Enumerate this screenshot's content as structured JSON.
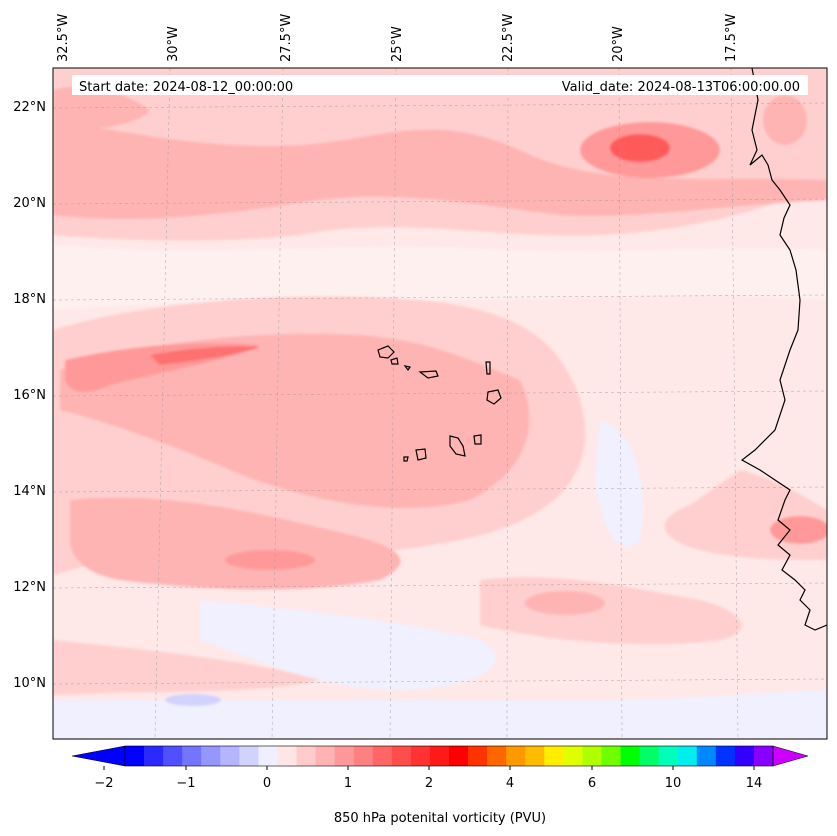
{
  "map": {
    "start_label": "Start date: 2024-08-12_00:00:00",
    "valid_label": "Valid_date: 2024-08-13T06:00:00.00",
    "lon_labels": [
      "32.5°W",
      "30°W",
      "27.5°W",
      "25°W",
      "22.5°W",
      "20°W",
      "17.5°W"
    ],
    "lat_labels": [
      "22°N",
      "20°N",
      "18°N",
      "16°N",
      "14°N",
      "12°N",
      "10°N"
    ],
    "background_color": "#ffe8e8"
  },
  "colorbar": {
    "title": "850 hPa potenital vorticity (PVU)",
    "tick_labels": [
      "−2",
      "−1",
      "0",
      "1",
      "2",
      "4",
      "6",
      "10",
      "14"
    ],
    "colors": [
      "#0000ff",
      "#2a2aff",
      "#5050ff",
      "#7474ff",
      "#9696ff",
      "#b4b4ff",
      "#d2d2ff",
      "#efefff",
      "#ffe6e6",
      "#ffcccc",
      "#ffb3b3",
      "#ff9999",
      "#ff8080",
      "#ff6666",
      "#ff4d4d",
      "#ff3333",
      "#ff1a1a",
      "#ff0000",
      "#ff3300",
      "#ff6600",
      "#ff9900",
      "#ffbb00",
      "#ffee00",
      "#e0ff00",
      "#b0ff00",
      "#70ff00",
      "#00ff00",
      "#00ff66",
      "#00ffbb",
      "#00eeee",
      "#0088ff",
      "#0033ff",
      "#3300ff",
      "#8800ff"
    ],
    "extend_low_color": "#0000ff",
    "extend_high_color": "#cc00ff"
  }
}
